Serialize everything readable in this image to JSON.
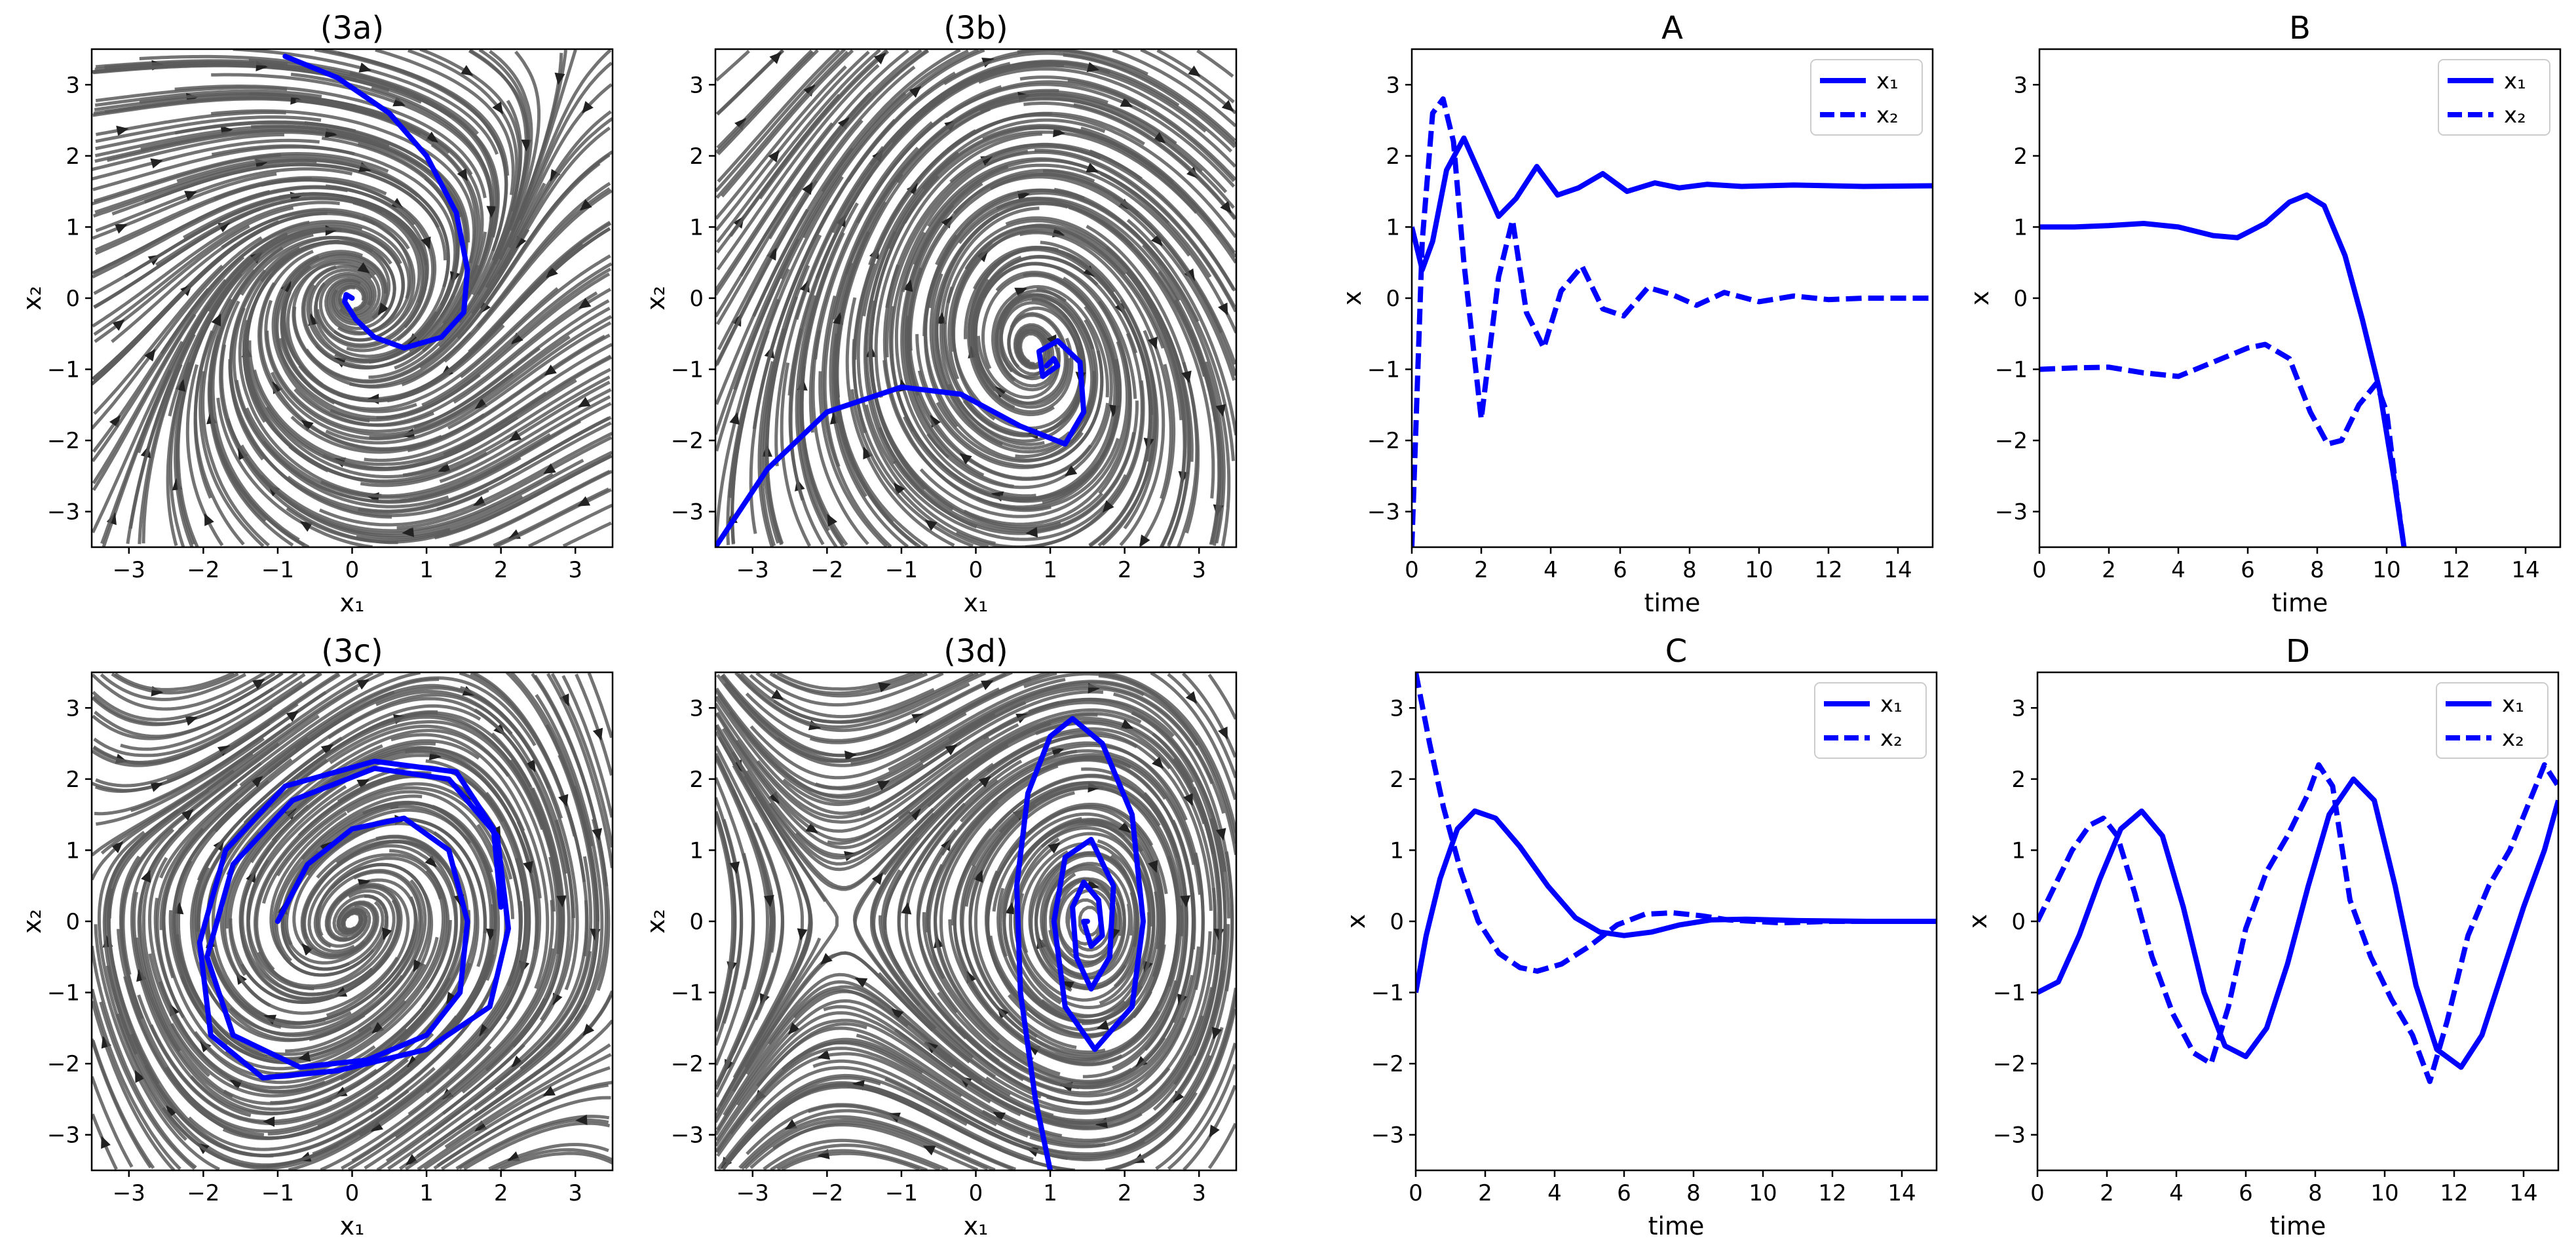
{
  "colors": {
    "trajectory": "#0000ff",
    "stream": "#5a5a5a",
    "frame": "#000000"
  },
  "chart_data": [
    {
      "type": "streamplot",
      "title": "(3a)",
      "xlabel": "x₁",
      "ylabel": "x₂",
      "xlim": [
        -3.5,
        3.5
      ],
      "ylim": [
        -3.5,
        3.5
      ],
      "xticks": [
        -3,
        -2,
        -1,
        0,
        1,
        2,
        3
      ],
      "yticks": [
        -3,
        -2,
        -1,
        0,
        1,
        2,
        3
      ],
      "field": "stable-spiral",
      "trajectory": {
        "x": [
          -0.9,
          -0.2,
          0.5,
          1.0,
          1.4,
          1.55,
          1.5,
          1.2,
          0.7,
          0.3,
          0.05,
          -0.1,
          -0.08,
          0.0
        ],
        "y": [
          3.4,
          3.1,
          2.6,
          2.0,
          1.2,
          0.4,
          -0.2,
          -0.55,
          -0.7,
          -0.55,
          -0.3,
          -0.05,
          0.05,
          0.0
        ]
      }
    },
    {
      "type": "streamplot",
      "title": "(3b)",
      "xlabel": "x₁",
      "ylabel": "x₂",
      "xlim": [
        -3.5,
        3.5
      ],
      "ylim": [
        -3.5,
        3.5
      ],
      "xticks": [
        -3,
        -2,
        -1,
        0,
        1,
        2,
        3
      ],
      "yticks": [
        -3,
        -2,
        -1,
        0,
        1,
        2,
        3
      ],
      "field": "saddle-and-spiral",
      "trajectory": {
        "x": [
          -3.5,
          -2.8,
          -2.0,
          -1.0,
          -0.2,
          0.6,
          1.2,
          1.45,
          1.4,
          1.1,
          0.85,
          0.9,
          1.1,
          1.05,
          0.95
        ],
        "y": [
          -3.5,
          -2.4,
          -1.6,
          -1.25,
          -1.35,
          -1.8,
          -2.05,
          -1.6,
          -0.9,
          -0.6,
          -0.75,
          -1.1,
          -0.95,
          -0.85,
          -0.95
        ]
      }
    },
    {
      "type": "line",
      "title": "A",
      "xlabel": "time",
      "ylabel": "x",
      "xlim": [
        0,
        15
      ],
      "ylim": [
        -3.5,
        3.5
      ],
      "xticks": [
        0,
        2,
        4,
        6,
        8,
        10,
        12,
        14
      ],
      "yticks": [
        -3,
        -2,
        -1,
        0,
        1,
        2,
        3
      ],
      "legend": "top-right",
      "series": [
        {
          "name": "x₁",
          "style": "solid",
          "x": [
            0,
            0.3,
            0.6,
            1.0,
            1.5,
            2.0,
            2.5,
            3.0,
            3.6,
            4.2,
            4.8,
            5.5,
            6.2,
            7.0,
            7.7,
            8.5,
            9.5,
            11,
            13,
            15
          ],
          "y": [
            1.0,
            0.4,
            0.8,
            1.8,
            2.25,
            1.7,
            1.15,
            1.4,
            1.85,
            1.45,
            1.55,
            1.75,
            1.5,
            1.62,
            1.55,
            1.6,
            1.57,
            1.59,
            1.57,
            1.58
          ]
        },
        {
          "name": "x₂",
          "style": "dashed",
          "x": [
            0,
            0.3,
            0.6,
            0.9,
            1.2,
            1.5,
            2.0,
            2.5,
            2.9,
            3.3,
            3.8,
            4.3,
            4.9,
            5.5,
            6.1,
            6.8,
            7.5,
            8.2,
            9.0,
            10,
            11,
            12,
            13,
            15
          ],
          "y": [
            -3.5,
            0.8,
            2.6,
            2.8,
            2.2,
            0.5,
            -1.7,
            0.3,
            1.1,
            -0.2,
            -0.7,
            0.1,
            0.45,
            -0.15,
            -0.25,
            0.15,
            0.05,
            -0.1,
            0.08,
            -0.05,
            0.03,
            -0.02,
            0.0,
            0.0
          ]
        }
      ]
    },
    {
      "type": "line",
      "title": "B",
      "xlabel": "time",
      "ylabel": "x",
      "xlim": [
        0,
        15
      ],
      "ylim": [
        -3.5,
        3.5
      ],
      "xticks": [
        0,
        2,
        4,
        6,
        8,
        10,
        12,
        14
      ],
      "yticks": [
        -3,
        -2,
        -1,
        0,
        1,
        2,
        3
      ],
      "legend": "top-right",
      "series": [
        {
          "name": "x₁",
          "style": "solid",
          "x": [
            0,
            1,
            2,
            3,
            4,
            5,
            5.7,
            6.5,
            7.2,
            7.7,
            8.2,
            8.8,
            9.3,
            9.8,
            10.2,
            10.5
          ],
          "y": [
            1.0,
            1.0,
            1.02,
            1.05,
            1.0,
            0.88,
            0.85,
            1.05,
            1.35,
            1.45,
            1.3,
            0.6,
            -0.3,
            -1.3,
            -2.5,
            -3.5
          ]
        },
        {
          "name": "x₂",
          "style": "dashed",
          "x": [
            0,
            1,
            2,
            3,
            4,
            5,
            6,
            6.5,
            7.2,
            7.8,
            8.3,
            8.7,
            9.2,
            9.7,
            10.0,
            10.3,
            10.5
          ],
          "y": [
            -1.0,
            -0.98,
            -0.97,
            -1.05,
            -1.1,
            -0.9,
            -0.7,
            -0.65,
            -0.85,
            -1.6,
            -2.05,
            -2.0,
            -1.5,
            -1.2,
            -1.6,
            -2.8,
            -3.5
          ]
        }
      ]
    },
    {
      "type": "streamplot",
      "title": "(3c)",
      "xlabel": "x₁",
      "ylabel": "x₂",
      "xlim": [
        -3.5,
        3.5
      ],
      "ylim": [
        -3.5,
        3.5
      ],
      "xticks": [
        -3,
        -2,
        -1,
        0,
        1,
        2,
        3
      ],
      "yticks": [
        -3,
        -2,
        -1,
        0,
        1,
        2,
        3
      ],
      "field": "limit-cycle",
      "trajectory": {
        "x": [
          -1.0,
          -0.6,
          0.0,
          0.7,
          1.3,
          1.55,
          1.45,
          1.0,
          0.2,
          -0.7,
          -1.6,
          -1.95,
          -1.6,
          -0.8,
          0.3,
          1.3,
          1.95,
          2.1,
          1.85,
          1.0,
          -0.2,
          -1.2,
          -1.9,
          -2.05,
          -1.7,
          -0.9,
          0.3,
          1.4,
          1.9,
          2.0
        ],
        "y": [
          0.0,
          0.8,
          1.3,
          1.45,
          1.0,
          0.0,
          -1.0,
          -1.6,
          -1.95,
          -2.05,
          -1.6,
          -0.5,
          0.8,
          1.7,
          2.15,
          2.0,
          1.2,
          -0.1,
          -1.2,
          -1.8,
          -2.1,
          -2.2,
          -1.6,
          -0.3,
          1.0,
          1.9,
          2.25,
          2.1,
          1.3,
          0.2
        ]
      }
    },
    {
      "type": "streamplot",
      "title": "(3d)",
      "xlabel": "x₁",
      "ylabel": "x₂",
      "xlim": [
        -3.5,
        3.5
      ],
      "ylim": [
        -3.5,
        3.5
      ],
      "xticks": [
        -3,
        -2,
        -1,
        0,
        1,
        2,
        3
      ],
      "yticks": [
        -3,
        -2,
        -1,
        0,
        1,
        2,
        3
      ],
      "field": "unstable-center",
      "trajectory": {
        "x": [
          1.0,
          0.8,
          0.6,
          0.55,
          0.7,
          1.0,
          1.3,
          1.7,
          2.1,
          2.25,
          2.1,
          1.6,
          1.2,
          1.05,
          1.2,
          1.55,
          1.85,
          1.8,
          1.55,
          1.35,
          1.3,
          1.45,
          1.65,
          1.7,
          1.55,
          1.45,
          1.5
        ],
        "y": [
          -3.5,
          -2.5,
          -1.0,
          0.5,
          1.8,
          2.6,
          2.85,
          2.5,
          1.5,
          0.0,
          -1.2,
          -1.8,
          -1.2,
          0.0,
          0.9,
          1.15,
          0.5,
          -0.5,
          -0.95,
          -0.5,
          0.2,
          0.55,
          0.3,
          -0.2,
          -0.35,
          0.0,
          0.0
        ]
      }
    },
    {
      "type": "line",
      "title": "C",
      "xlabel": "time",
      "ylabel": "x",
      "xlim": [
        0,
        15
      ],
      "ylim": [
        -3.5,
        3.5
      ],
      "xticks": [
        0,
        2,
        4,
        6,
        8,
        10,
        12,
        14
      ],
      "yticks": [
        -3,
        -2,
        -1,
        0,
        1,
        2,
        3
      ],
      "legend": "top-right",
      "series": [
        {
          "name": "x₁",
          "style": "solid",
          "x": [
            0,
            0.3,
            0.7,
            1.2,
            1.7,
            2.3,
            3.0,
            3.8,
            4.6,
            5.3,
            6.0,
            6.8,
            7.6,
            8.5,
            9.5,
            11,
            13,
            15
          ],
          "y": [
            -1.0,
            -0.2,
            0.6,
            1.3,
            1.55,
            1.45,
            1.05,
            0.5,
            0.05,
            -0.15,
            -0.2,
            -0.15,
            -0.05,
            0.02,
            0.03,
            0.01,
            0.0,
            0.0
          ]
        },
        {
          "name": "x₂",
          "style": "dashed",
          "x": [
            0,
            0.4,
            0.8,
            1.3,
            1.8,
            2.4,
            3.0,
            3.5,
            4.2,
            5.0,
            5.8,
            6.6,
            7.4,
            8.2,
            9.0,
            10.5,
            12,
            15
          ],
          "y": [
            3.5,
            2.5,
            1.6,
            0.7,
            0.0,
            -0.45,
            -0.65,
            -0.7,
            -0.6,
            -0.35,
            -0.05,
            0.1,
            0.12,
            0.08,
            0.02,
            -0.02,
            0.0,
            0.0
          ]
        }
      ]
    },
    {
      "type": "line",
      "title": "D",
      "xlabel": "time",
      "ylabel": "x",
      "xlim": [
        0,
        15
      ],
      "ylim": [
        -3.5,
        3.5
      ],
      "xticks": [
        0,
        2,
        4,
        6,
        8,
        10,
        12,
        14
      ],
      "yticks": [
        -3,
        -2,
        -1,
        0,
        1,
        2,
        3
      ],
      "legend": "top-right",
      "series": [
        {
          "name": "x₁",
          "style": "solid",
          "x": [
            0,
            0.6,
            1.2,
            1.8,
            2.4,
            3.0,
            3.6,
            4.2,
            4.8,
            5.4,
            6.0,
            6.6,
            7.2,
            7.8,
            8.4,
            9.1,
            9.7,
            10.3,
            10.9,
            11.5,
            12.2,
            12.8,
            13.4,
            14.0,
            14.6,
            15
          ],
          "y": [
            -1.0,
            -0.85,
            -0.2,
            0.6,
            1.3,
            1.55,
            1.2,
            0.2,
            -1.0,
            -1.75,
            -1.9,
            -1.5,
            -0.6,
            0.5,
            1.5,
            2.0,
            1.7,
            0.5,
            -0.9,
            -1.8,
            -2.05,
            -1.6,
            -0.7,
            0.2,
            1.0,
            1.7
          ]
        },
        {
          "name": "x₂",
          "style": "dashed",
          "x": [
            0,
            0.5,
            1.0,
            1.5,
            1.9,
            2.3,
            2.8,
            3.3,
            3.9,
            4.5,
            5.0,
            5.5,
            6.0,
            6.6,
            7.2,
            7.8,
            8.1,
            8.5,
            9.0,
            9.6,
            10.2,
            10.8,
            11.3,
            11.8,
            12.4,
            13.0,
            13.6,
            14.1,
            14.6,
            15
          ],
          "y": [
            0.0,
            0.5,
            1.0,
            1.35,
            1.45,
            1.2,
            0.4,
            -0.5,
            -1.3,
            -1.85,
            -2.0,
            -1.2,
            -0.1,
            0.7,
            1.2,
            1.8,
            2.2,
            1.9,
            0.3,
            -0.5,
            -1.1,
            -1.6,
            -2.25,
            -1.4,
            -0.2,
            0.5,
            1.0,
            1.6,
            2.2,
            1.9
          ]
        }
      ]
    }
  ]
}
